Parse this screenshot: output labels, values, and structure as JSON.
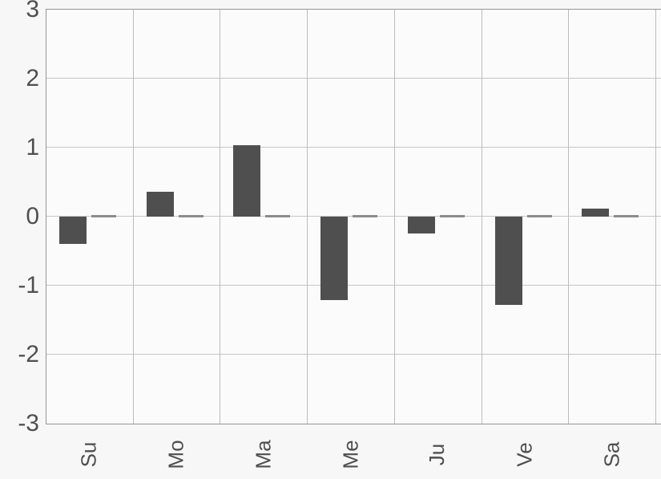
{
  "chart_data": {
    "type": "bar",
    "title": "",
    "xlabel": "",
    "ylabel": "",
    "categories": [
      "Su",
      "Mo",
      "Ma",
      "Me",
      "Ju",
      "Ve",
      "Sa"
    ],
    "series": [
      {
        "name": "main-bars",
        "values": [
          -0.4,
          0.36,
          1.03,
          -1.21,
          -0.24,
          -1.28,
          0.12
        ],
        "color": "#4f4f4f"
      },
      {
        "name": "zero-bars",
        "values": [
          0,
          0,
          0,
          0,
          0,
          0,
          0
        ],
        "color": "#8c8c8c"
      }
    ],
    "ylim": [
      -3,
      3
    ],
    "yticks": [
      3,
      2,
      1,
      0,
      -1,
      -2,
      -3
    ],
    "grid": true,
    "legend": false,
    "x_tick_rotation_deg": 90
  },
  "style": {
    "background": "#f7f7f7",
    "plot_background": "#fbfbfb",
    "grid_color": "#c6c6c6",
    "axis_border_color": "#969696",
    "bar_color": "#4f4f4f",
    "zero_bar_color": "#8c8c8c",
    "tick_label_color": "#4f4f4f"
  }
}
